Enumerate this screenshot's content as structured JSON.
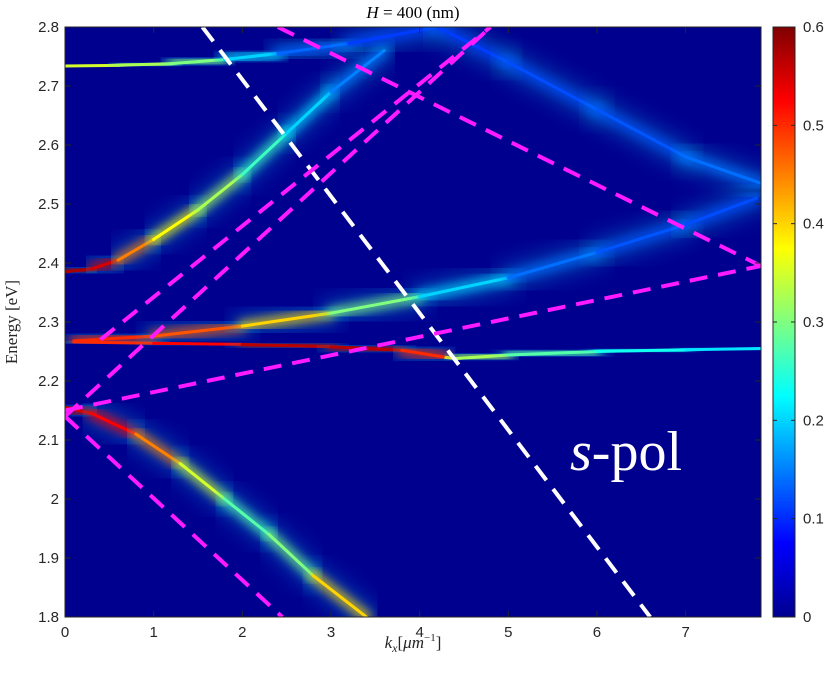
{
  "chart_data": {
    "type": "heatmap",
    "title_var": "H",
    "title_rest": " = 400 (nm)",
    "xlabel_var": "k",
    "xlabel_sub": "x",
    "xlabel_unit_open": "[",
    "xlabel_unit_mu": "μm",
    "xlabel_unit_exp": "−1",
    "xlabel_unit_close": "]",
    "ylabel": "Energy [eV]",
    "annotation_italic": "s",
    "annotation_rest": "-pol",
    "xlim": [
      0,
      7.85
    ],
    "ylim": [
      1.8,
      2.8
    ],
    "x_ticks": [
      "0",
      "1",
      "2",
      "3",
      "4",
      "5",
      "6",
      "7"
    ],
    "y_ticks": [
      "1.8",
      "1.9",
      "2",
      "2.1",
      "2.2",
      "2.3",
      "2.4",
      "2.5",
      "2.6",
      "2.7",
      "2.8"
    ],
    "colorbar": {
      "min": 0,
      "max": 0.6,
      "ticks": [
        "0",
        "0.1",
        "0.2",
        "0.3",
        "0.4",
        "0.5",
        "0.6"
      ],
      "colormap": "jet"
    },
    "background_color": "#00008f",
    "bands": [
      {
        "name": "upper-band",
        "x": [
          0,
          0.3,
          0.6,
          1.0,
          1.5,
          2.0,
          2.5,
          3.0,
          3.6
        ],
        "y": [
          2.385,
          2.39,
          2.405,
          2.44,
          2.49,
          2.55,
          2.62,
          2.69,
          2.76
        ],
        "intensity": [
          0.55,
          0.6,
          0.5,
          0.4,
          0.35,
          0.3,
          0.22,
          0.18,
          0.12
        ]
      },
      {
        "name": "middle-upper-band",
        "x": [
          0.1,
          1,
          2,
          3,
          4,
          5,
          6,
          7,
          7.8
        ],
        "y": [
          2.268,
          2.276,
          2.293,
          2.315,
          2.343,
          2.375,
          2.418,
          2.465,
          2.51
        ],
        "intensity": [
          0.5,
          0.5,
          0.45,
          0.35,
          0.25,
          0.15,
          0.13,
          0.12,
          0.12
        ]
      },
      {
        "name": "central-flat-band",
        "x": [
          0.1,
          1,
          2,
          3,
          3.8,
          4.3,
          4.4,
          5,
          6,
          7,
          7.85
        ],
        "y": [
          2.266,
          2.264,
          2.262,
          2.258,
          2.252,
          2.24,
          2.238,
          2.244,
          2.25,
          2.253,
          2.255
        ],
        "intensity": [
          0.5,
          0.5,
          0.55,
          0.58,
          0.55,
          0.45,
          0.35,
          0.3,
          0.25,
          0.22,
          0.2
        ]
      },
      {
        "name": "lower-band",
        "x": [
          0,
          0.3,
          0.8,
          1.3,
          1.8,
          2.3,
          2.8,
          3.4
        ],
        "y": [
          2.155,
          2.145,
          2.11,
          2.06,
          2.0,
          1.94,
          1.87,
          1.8
        ],
        "intensity": [
          0.55,
          0.55,
          0.5,
          0.4,
          0.3,
          0.25,
          0.35,
          0.45
        ]
      },
      {
        "name": "top-flat-mode",
        "x": [
          0,
          0.6,
          1.2,
          1.8,
          2.4,
          3.2,
          4.2
        ],
        "y": [
          2.734,
          2.735,
          2.738,
          2.745,
          2.755,
          2.772,
          2.8
        ],
        "intensity": [
          0.4,
          0.3,
          0.35,
          0.25,
          0.15,
          0.12,
          0.1
        ]
      },
      {
        "name": "descending-band",
        "x": [
          4.2,
          5,
          6,
          7,
          7.85
        ],
        "y": [
          2.8,
          2.74,
          2.66,
          2.58,
          2.535
        ],
        "intensity": [
          0.1,
          0.12,
          0.12,
          0.13,
          0.15
        ]
      }
    ],
    "dashed_lines": [
      {
        "name": "white-light-line",
        "color": "#ffffff",
        "x": [
          1.55,
          6.6
        ],
        "y": [
          2.8,
          1.8
        ]
      },
      {
        "name": "magenta-line-up-1",
        "color": "#ff1aff",
        "x": [
          0,
          4.8
        ],
        "y": [
          2.14,
          2.8
        ]
      },
      {
        "name": "magenta-line-up-2",
        "color": "#ff1aff",
        "x": [
          0,
          7.85
        ],
        "y": [
          2.15,
          2.395
        ]
      },
      {
        "name": "magenta-line-down-1",
        "color": "#ff1aff",
        "x": [
          0,
          2.45
        ],
        "y": [
          2.14,
          1.8
        ]
      },
      {
        "name": "magenta-line-down-2",
        "color": "#ff1aff",
        "x": [
          2.4,
          7.85
        ],
        "y": [
          2.8,
          2.395
        ]
      },
      {
        "name": "magenta-line-steep",
        "color": "#ff1aff",
        "x": [
          0.4,
          4.8
        ],
        "y": [
          2.27,
          2.8
        ]
      }
    ]
  }
}
